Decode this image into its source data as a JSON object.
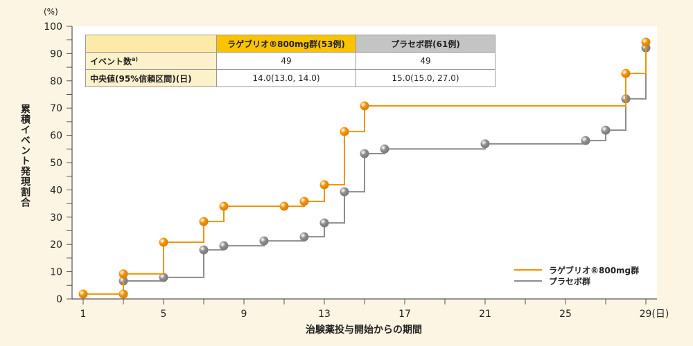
{
  "chart_data": {
    "type": "line",
    "subtype": "step",
    "xlabel": "治験薬投与開始からの期間",
    "ylabel": "累積イベント発現割合",
    "y_unit": "(%)",
    "x_unit": "(日)",
    "xlim": [
      1,
      29
    ],
    "ylim": [
      0,
      100
    ],
    "x_ticks": [
      1,
      5,
      9,
      13,
      17,
      21,
      25,
      29
    ],
    "y_ticks": [
      0,
      10,
      20,
      30,
      40,
      50,
      60,
      70,
      80,
      90,
      100
    ],
    "legend_position": "bottom-right",
    "series": [
      {
        "name": "ラゲブリオ®800mg群",
        "color": "#f39200",
        "x": [
          1,
          3,
          3,
          5,
          7,
          8,
          11,
          12,
          13,
          14,
          15,
          28,
          29
        ],
        "y": [
          1.8,
          1.8,
          9.2,
          20.8,
          28.4,
          34.0,
          34.0,
          35.8,
          41.9,
          61.4,
          70.8,
          82.7,
          94.2
        ]
      },
      {
        "name": "プラセボ群",
        "color": "#8c8c8c",
        "x": [
          3,
          5,
          7,
          8,
          10,
          12,
          13,
          14,
          15,
          16,
          21,
          26,
          27,
          28,
          29
        ],
        "y": [
          6.6,
          7.9,
          18.0,
          19.5,
          21.3,
          22.8,
          27.9,
          39.3,
          53.3,
          55.0,
          56.9,
          58.1,
          61.9,
          73.4,
          92.1
        ]
      }
    ]
  },
  "table": {
    "headers": [
      "",
      "ラゲブリオ®800mg群(53例)",
      "プラセボ群(61例)"
    ],
    "rows": [
      {
        "label": "イベント数",
        "note": "a)",
        "values": [
          "49",
          "49"
        ]
      },
      {
        "label": "中央値(95%信頼区間)(日)",
        "values": [
          "14.0(13.0, 14.0)",
          "15.0(15.0, 27.0)"
        ]
      }
    ]
  }
}
